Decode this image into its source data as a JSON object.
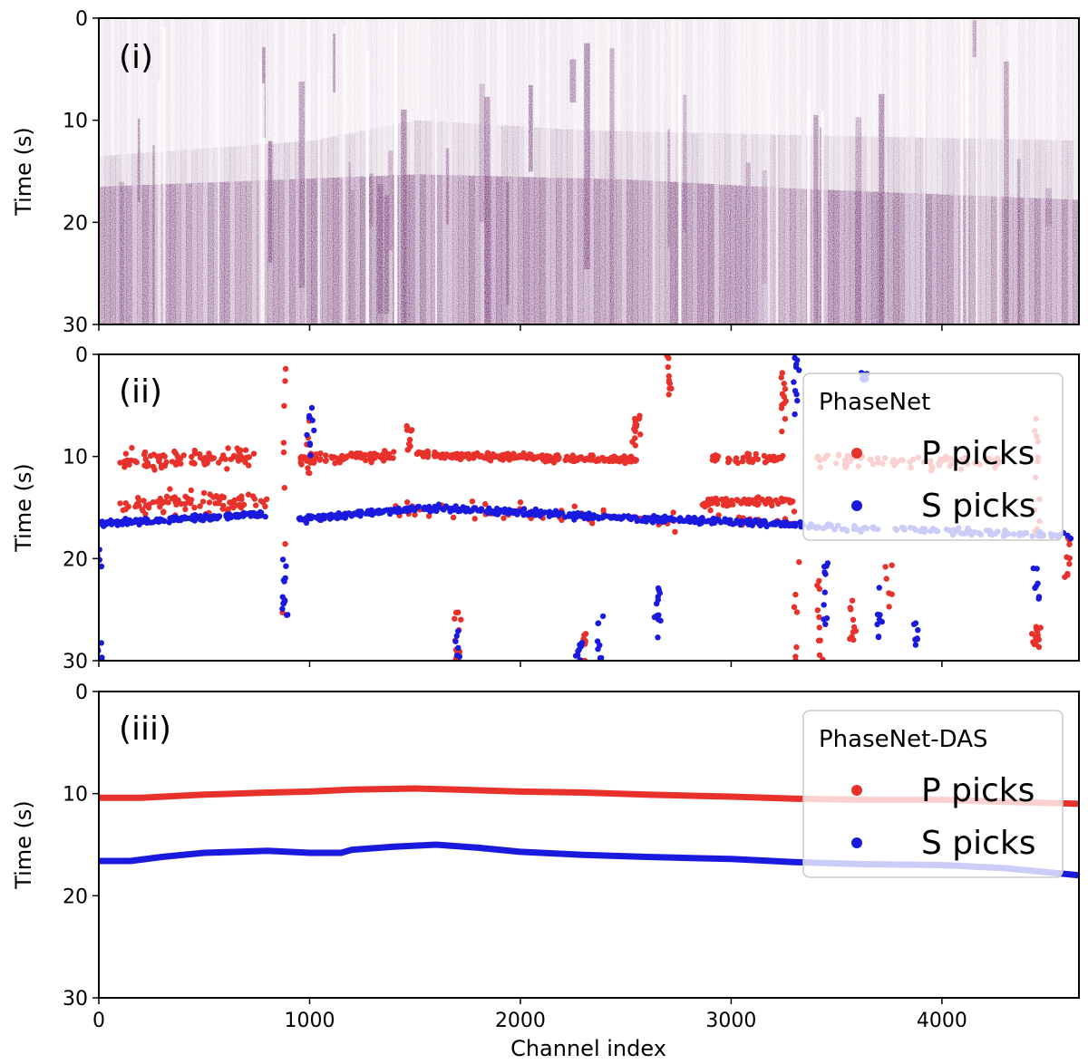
{
  "chart_data": [
    {
      "type": "heatmap",
      "panel_label": "(i)",
      "ylabel": "Time (s)",
      "xlim": [
        0,
        4650
      ],
      "ylim": [
        30,
        0
      ],
      "yticks": [
        0,
        10,
        20,
        30
      ],
      "xticks": [
        0,
        1000,
        2000,
        3000,
        4000
      ],
      "colors": {
        "field": "#6b2a6b",
        "background": "#ffffff"
      },
      "features": {
        "p_front": [
          [
            0,
            13.5
          ],
          [
            1000,
            12
          ],
          [
            1500,
            10
          ],
          [
            2300,
            11
          ],
          [
            3400,
            11.5
          ],
          [
            4650,
            12
          ]
        ],
        "s_front": [
          [
            0,
            16.5
          ],
          [
            1500,
            15.3
          ],
          [
            2500,
            15.8
          ],
          [
            3300,
            16.7
          ],
          [
            4650,
            17.8
          ]
        ]
      }
    },
    {
      "type": "scatter",
      "panel_label": "(ii)",
      "ylabel": "Time (s)",
      "xlim": [
        0,
        4650
      ],
      "ylim": [
        30,
        0
      ],
      "yticks": [
        0,
        10,
        20,
        30
      ],
      "xticks": [
        0,
        1000,
        2000,
        3000,
        4000
      ],
      "legend": {
        "title": "PhaseNet",
        "position": "upper right"
      },
      "series": [
        {
          "name": "P picks",
          "color": "#e8312a",
          "clusters": [
            {
              "x": [
                100,
                750
              ],
              "y": [
                10.5,
                10
              ],
              "spread": 0.9,
              "n": 90
            },
            {
              "x": [
                100,
                800
              ],
              "y": [
                14.8,
                14.3
              ],
              "spread": 1.1,
              "n": 90
            },
            {
              "x": [
                950,
                1400
              ],
              "y": [
                10.2,
                10
              ],
              "spread": 0.5,
              "n": 80
            },
            {
              "x": [
                1500,
                2550
              ],
              "y": [
                9.8,
                10.3
              ],
              "spread": 0.35,
              "n": 240
            },
            {
              "x": [
                2850,
                3300
              ],
              "y": [
                14.5,
                14.3
              ],
              "spread": 0.4,
              "n": 70
            },
            {
              "x": [
                3400,
                4300
              ],
              "y": [
                10.4,
                10.6
              ],
              "spread": 0.6,
              "n": 80
            },
            {
              "x": [
                1400,
                3300
              ],
              "y": [
                15.2,
                16.5
              ],
              "spread": 0.9,
              "n": 70
            },
            {
              "x": [
                2900,
                3250
              ],
              "y": [
                10.2,
                10.2
              ],
              "spread": 0.5,
              "n": 40
            }
          ],
          "streaks": [
            [
              880,
              0,
              30
            ],
            [
              1000,
              6,
              12
            ],
            [
              1470,
              7,
              10
            ],
            [
              2550,
              6,
              9
            ],
            [
              2700,
              0,
              6
            ],
            [
              1700,
              25,
              30
            ],
            [
              3250,
              0,
              8
            ],
            [
              3310,
              20,
              30
            ],
            [
              3420,
              22,
              30
            ],
            [
              3580,
              24,
              28
            ],
            [
              4450,
              6,
              18
            ],
            [
              4600,
              17,
              22
            ],
            [
              4450,
              26,
              29
            ],
            [
              3750,
              20,
              25
            ],
            [
              2300,
              27,
              30
            ]
          ]
        },
        {
          "name": "S picks",
          "color": "#1a1adf",
          "clusters": [
            {
              "x": [
                0,
                800
              ],
              "y": [
                16.6,
                15.6
              ],
              "spread": 0.25,
              "n": 180
            },
            {
              "x": [
                950,
                1550
              ],
              "y": [
                16.2,
                15.0
              ],
              "spread": 0.25,
              "n": 130
            },
            {
              "x": [
                1550,
                2500
              ],
              "y": [
                15.0,
                16.0
              ],
              "spread": 0.3,
              "n": 190
            },
            {
              "x": [
                2500,
                3350
              ],
              "y": [
                16.0,
                16.7
              ],
              "spread": 0.3,
              "n": 160
            },
            {
              "x": [
                3350,
                4650
              ],
              "y": [
                16.8,
                17.8
              ],
              "spread": 0.35,
              "n": 120
            }
          ],
          "streaks": [
            [
              880,
              20,
              26
            ],
            [
              0,
              19,
              21
            ],
            [
              0,
              28,
              30
            ],
            [
              1700,
              27,
              30
            ],
            [
              1000,
              5,
              10
            ],
            [
              3310,
              0,
              6
            ],
            [
              3450,
              20,
              27
            ],
            [
              3630,
              0,
              3
            ],
            [
              3700,
              22,
              29
            ],
            [
              4450,
              20,
              24
            ],
            [
              2280,
              28,
              30
            ],
            [
              2650,
              22,
              28
            ],
            [
              2380,
              24,
              30
            ],
            [
              3880,
              25,
              29
            ]
          ]
        }
      ]
    },
    {
      "type": "scatter",
      "panel_label": "(iii)",
      "xlabel": "Channel index",
      "ylabel": "Time (s)",
      "xlim": [
        0,
        4650
      ],
      "ylim": [
        30,
        0
      ],
      "yticks": [
        0,
        10,
        20,
        30
      ],
      "xticks": [
        0,
        1000,
        2000,
        3000,
        4000
      ],
      "legend": {
        "title": "PhaseNet-DAS",
        "position": "upper right"
      },
      "series": [
        {
          "name": "P picks",
          "color": "#e8312a",
          "x": [
            0,
            200,
            500,
            800,
            1000,
            1200,
            1500,
            1700,
            2000,
            2300,
            2600,
            3000,
            3300,
            3600,
            4000,
            4300,
            4650
          ],
          "y": [
            10.4,
            10.4,
            10.1,
            9.9,
            9.8,
            9.6,
            9.5,
            9.6,
            9.8,
            9.9,
            10.1,
            10.3,
            10.5,
            10.6,
            10.6,
            10.8,
            11.0
          ]
        },
        {
          "name": "S picks",
          "color": "#1a1adf",
          "x": [
            0,
            150,
            300,
            500,
            800,
            1000,
            1150,
            1200,
            1400,
            1600,
            1800,
            2000,
            2300,
            2600,
            3000,
            3300,
            3600,
            4000,
            4300,
            4650
          ],
          "y": [
            16.6,
            16.6,
            16.2,
            15.8,
            15.6,
            15.8,
            15.8,
            15.5,
            15.2,
            15.0,
            15.3,
            15.7,
            16.0,
            16.2,
            16.4,
            16.7,
            16.9,
            17.0,
            17.3,
            18.0
          ]
        }
      ]
    }
  ]
}
